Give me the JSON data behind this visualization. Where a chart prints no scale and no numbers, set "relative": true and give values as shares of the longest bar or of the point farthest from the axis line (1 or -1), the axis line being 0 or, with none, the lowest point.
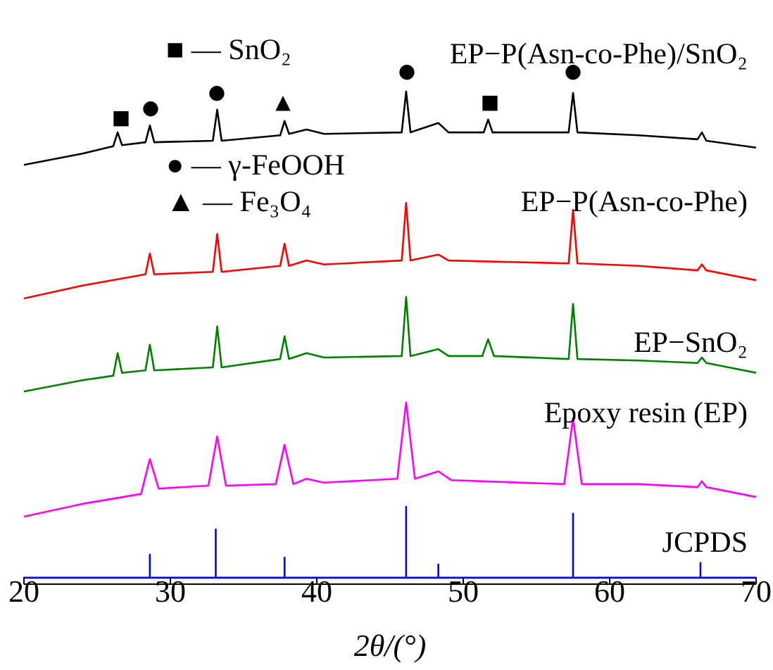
{
  "chart_data": {
    "type": "line",
    "relative": true,
    "xlabel": "2θ/(°)",
    "xlim": [
      20,
      70
    ],
    "xticks": [
      20,
      30,
      40,
      50,
      60,
      70
    ],
    "legend": false,
    "grid": false,
    "marker": "none",
    "line_style": "solid",
    "series": [
      {
        "name": "EP−P(Asn-co-Phe)/SnO₂",
        "color": "#000000",
        "x": [
          20,
          24,
          26.1,
          26.4,
          26.7,
          28.3,
          28.6,
          28.9,
          32.9,
          33.2,
          33.5,
          37.5,
          37.8,
          38.1,
          39.3,
          40.5,
          45.8,
          46.1,
          46.4,
          48.3,
          49,
          51.4,
          51.7,
          52,
          57.2,
          57.5,
          57.8,
          62,
          66,
          66.3,
          66.6,
          70
        ],
        "values": [
          0.851,
          0.874,
          0.889,
          0.917,
          0.891,
          0.897,
          0.931,
          0.897,
          0.9,
          0.963,
          0.9,
          0.911,
          0.94,
          0.914,
          0.923,
          0.914,
          0.917,
          1.0,
          0.917,
          0.936,
          0.917,
          0.917,
          0.943,
          0.917,
          0.917,
          0.997,
          0.917,
          0.911,
          0.903,
          0.917,
          0.9,
          0.886
        ]
      },
      {
        "name": "EP−P(Asn-co-Phe)",
        "color": "#ff0000",
        "x": [
          20,
          24,
          28.3,
          28.6,
          28.9,
          32.9,
          33.2,
          33.5,
          37.5,
          37.8,
          38.1,
          39.3,
          40.5,
          45.8,
          46.1,
          46.4,
          48.3,
          49,
          57.2,
          57.5,
          57.8,
          62,
          66,
          66.3,
          66.6,
          70
        ],
        "values": [
          0.58,
          0.606,
          0.629,
          0.671,
          0.629,
          0.634,
          0.711,
          0.634,
          0.646,
          0.691,
          0.646,
          0.657,
          0.649,
          0.657,
          0.774,
          0.657,
          0.669,
          0.657,
          0.651,
          0.76,
          0.651,
          0.646,
          0.637,
          0.649,
          0.637,
          0.617
        ]
      },
      {
        "name": "EP−SnO₂",
        "color": "#008000",
        "x": [
          20,
          24,
          26.1,
          26.4,
          26.7,
          28.3,
          28.6,
          28.9,
          32.9,
          33.2,
          33.5,
          37.5,
          37.8,
          38.1,
          39.3,
          40.5,
          45.8,
          46.1,
          46.4,
          48.3,
          49,
          51.3,
          51.7,
          52.1,
          57.2,
          57.5,
          57.8,
          62,
          66,
          66.3,
          66.6,
          70
        ],
        "values": [
          0.391,
          0.414,
          0.423,
          0.469,
          0.429,
          0.434,
          0.486,
          0.434,
          0.44,
          0.523,
          0.44,
          0.457,
          0.503,
          0.457,
          0.469,
          0.46,
          0.463,
          0.583,
          0.463,
          0.477,
          0.463,
          0.463,
          0.497,
          0.463,
          0.457,
          0.569,
          0.457,
          0.454,
          0.449,
          0.46,
          0.449,
          0.429
        ]
      },
      {
        "name": "Epoxy resin (EP)",
        "color": "#ff00ff",
        "x": [
          20,
          24,
          28,
          28.6,
          29.2,
          32.6,
          33.2,
          33.8,
          37.2,
          37.8,
          38.4,
          39.3,
          40.5,
          45.5,
          46.1,
          46.7,
          48.3,
          49.2,
          56.9,
          57.5,
          58.1,
          62,
          66,
          66.3,
          66.6,
          70
        ],
        "values": [
          0.137,
          0.163,
          0.183,
          0.254,
          0.194,
          0.2,
          0.3,
          0.2,
          0.203,
          0.283,
          0.203,
          0.214,
          0.206,
          0.214,
          0.369,
          0.214,
          0.229,
          0.211,
          0.203,
          0.337,
          0.203,
          0.203,
          0.197,
          0.209,
          0.197,
          0.177
        ]
      },
      {
        "name": "JCPDS",
        "color": "#0000ff",
        "x": [
          20,
          28.6,
          28.6,
          28.6,
          33.1,
          33.1,
          33.1,
          37.8,
          37.8,
          37.8,
          46.1,
          46.1,
          46.1,
          48.3,
          48.3,
          48.3,
          57.5,
          57.5,
          57.5,
          66.2,
          66.2,
          66.2,
          70
        ],
        "values": [
          0.013,
          0.013,
          0.06,
          0.013,
          0.013,
          0.111,
          0.013,
          0.013,
          0.054,
          0.013,
          0.013,
          0.157,
          0.013,
          0.013,
          0.04,
          0.013,
          0.013,
          0.143,
          0.013,
          0.013,
          0.043,
          0.013,
          0.013
        ]
      }
    ],
    "annotations": [
      "■ — SnO₂",
      "● — γ-FeOOH",
      "▲ — Fe₃O₄",
      "■",
      "●",
      "●",
      "▲",
      "●",
      "■",
      "●"
    ]
  }
}
